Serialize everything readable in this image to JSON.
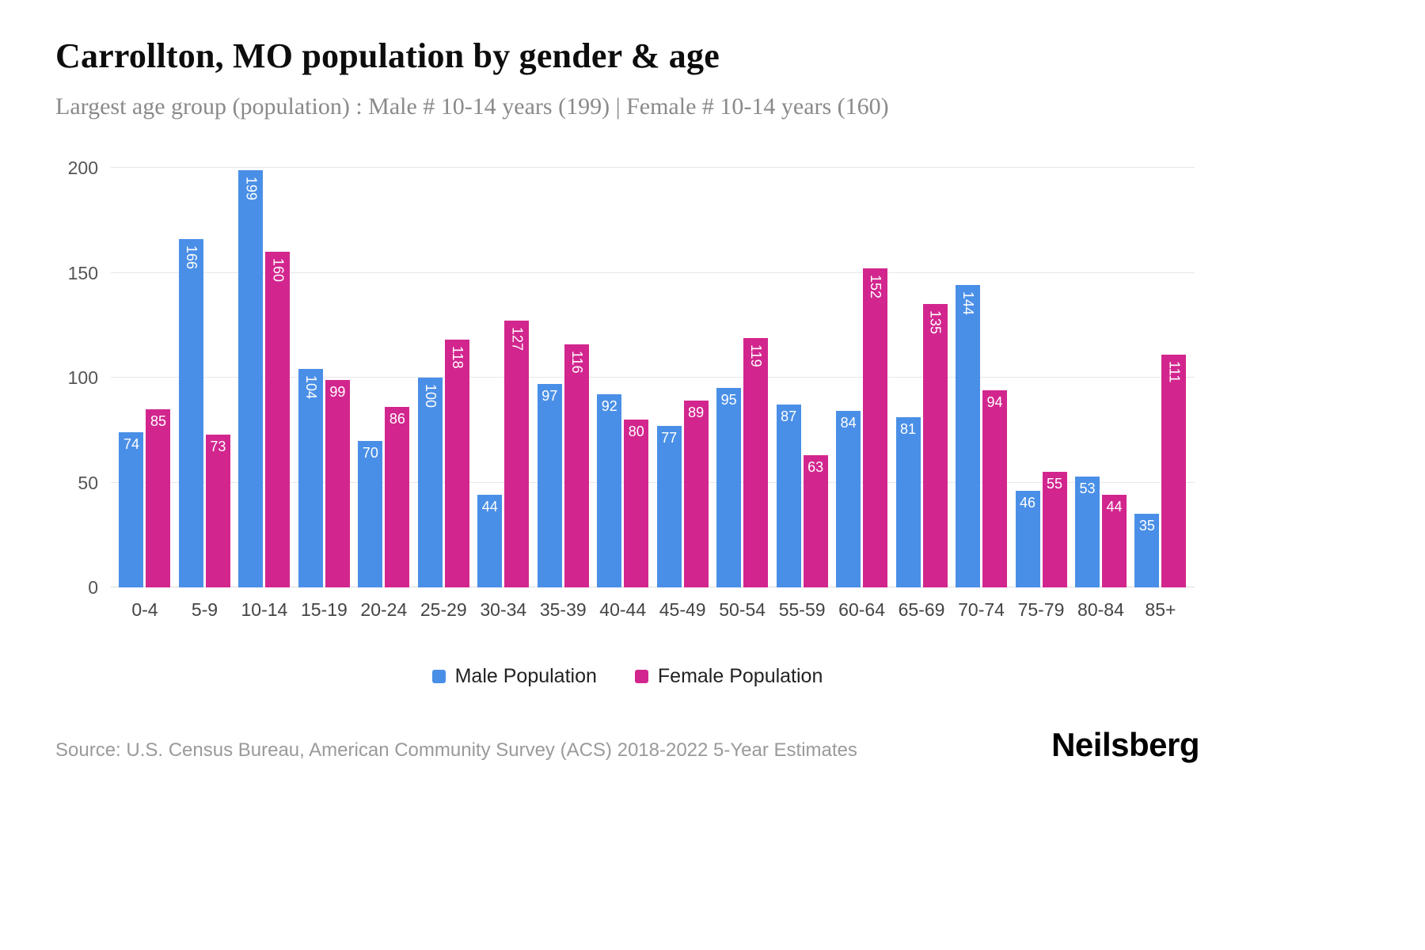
{
  "header": {
    "title": "Carrollton, MO population by gender & age",
    "subtitle": "Largest age group (population) : Male # 10-14 years (199) | Female # 10-14 years (160)"
  },
  "chart_data": {
    "type": "bar",
    "categories": [
      "0-4",
      "5-9",
      "10-14",
      "15-19",
      "20-24",
      "25-29",
      "30-34",
      "35-39",
      "40-44",
      "45-49",
      "50-54",
      "55-59",
      "60-64",
      "65-69",
      "70-74",
      "75-79",
      "80-84",
      "85+"
    ],
    "series": [
      {
        "name": "Male Population",
        "color": "#4a8fe7",
        "values": [
          74,
          166,
          199,
          104,
          70,
          100,
          44,
          97,
          92,
          77,
          95,
          87,
          84,
          81,
          144,
          46,
          53,
          35
        ]
      },
      {
        "name": "Female Population",
        "color": "#d2268e",
        "values": [
          85,
          73,
          160,
          99,
          86,
          118,
          127,
          116,
          80,
          89,
          119,
          63,
          152,
          135,
          94,
          55,
          44,
          111
        ]
      }
    ],
    "title": "Carrollton, MO population by gender & age",
    "xlabel": "",
    "ylabel": "",
    "ylim": [
      0,
      200
    ],
    "yticks": [
      0,
      50,
      100,
      150,
      200
    ],
    "grid": "horizontal",
    "legend_position": "bottom"
  },
  "legend": {
    "male": "Male Population",
    "female": "Female Population"
  },
  "footer": {
    "source": "Source: U.S. Census Bureau, American Community Survey (ACS) 2018-2022 5-Year Estimates",
    "brand": "Neilsberg"
  }
}
